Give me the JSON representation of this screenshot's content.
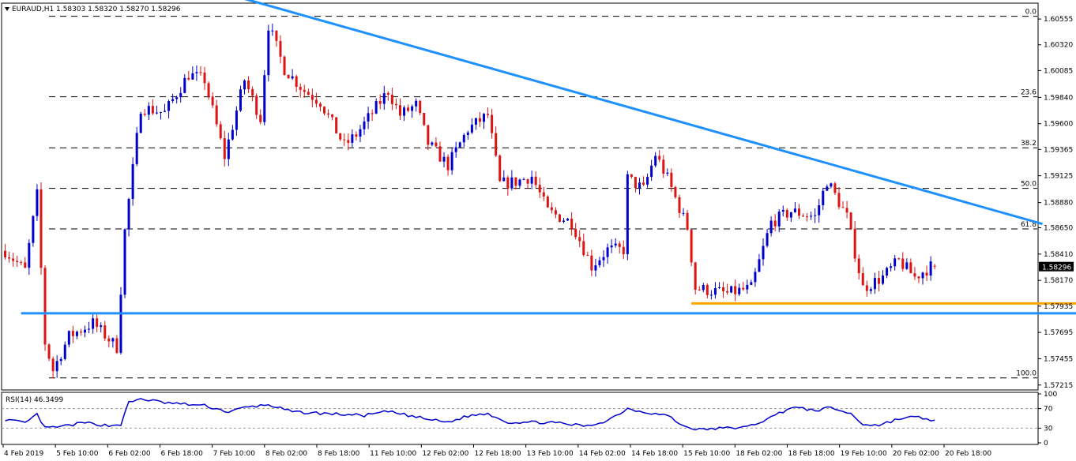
{
  "header": {
    "symbol_line": "EURAUD,H1  1.58303 1.58320 1.58270 1.58296",
    "rsi_label": "RSI(14) 46.3499"
  },
  "colors": {
    "bull": "#0000cd",
    "bear": "#dc1414",
    "trendline": "#1e90ff",
    "support_orange": "#ffa500",
    "rsi_line": "#0000cd"
  },
  "chart_data": [
    {
      "type": "candlestick",
      "title": "EURAUD,H1",
      "ohlc_last": {
        "open": 1.58303,
        "high": 1.5832,
        "low": 1.5827,
        "close": 1.58296
      },
      "current_price_label": "1.58296",
      "y_ticks": [
        "1.60555",
        "1.60320",
        "1.60085",
        "1.59840",
        "1.59600",
        "1.59365",
        "1.59125",
        "1.58880",
        "1.58650",
        "1.58410",
        "1.58170",
        "1.57935",
        "1.57695",
        "1.57455",
        "1.57215"
      ],
      "ylim": [
        1.5717,
        1.607
      ],
      "x_ticks": [
        "4 Feb 2019",
        "5 Feb 10:00",
        "6 Feb 02:00",
        "6 Feb 18:00",
        "7 Feb 10:00",
        "8 Feb 02:00",
        "8 Feb 18:00",
        "11 Feb 10:00",
        "12 Feb 02:00",
        "12 Feb 18:00",
        "13 Feb 10:00",
        "14 Feb 02:00",
        "14 Feb 18:00",
        "15 Feb 10:00",
        "18 Feb 02:00",
        "18 Feb 18:00",
        "19 Feb 10:00",
        "20 Feb 02:00",
        "20 Feb 18:00"
      ],
      "fib_levels": [
        {
          "label": "0.0",
          "price": 1.6058
        },
        {
          "label": "23.6",
          "price": 1.59845
        },
        {
          "label": "38.2",
          "price": 1.5938
        },
        {
          "label": "50.0",
          "price": 1.5901
        },
        {
          "label": "61.8",
          "price": 1.5864
        },
        {
          "label": "100.0",
          "price": 1.5728
        }
      ],
      "lines": [
        {
          "kind": "falling-trendline",
          "from": {
            "bar": 58,
            "price": 1.6076
          },
          "to": {
            "bar": 260,
            "price": 1.58685
          }
        },
        {
          "kind": "support",
          "from": {
            "bar": 4,
            "price": 1.5787
          },
          "to": {
            "bar": 270,
            "price": 1.5787
          }
        },
        {
          "kind": "support-orange",
          "from": {
            "bar": 172,
            "price": 1.5796
          },
          "to": {
            "bar": 270,
            "price": 1.5796
          }
        }
      ],
      "anchors": [
        [
          0,
          1.5844
        ],
        [
          5,
          1.5826
        ],
        [
          8,
          1.5895
        ],
        [
          10,
          1.576
        ],
        [
          12,
          1.5735
        ],
        [
          16,
          1.5766
        ],
        [
          22,
          1.5778
        ],
        [
          28,
          1.5756
        ],
        [
          30,
          1.5862
        ],
        [
          34,
          1.5975
        ],
        [
          40,
          1.597
        ],
        [
          46,
          1.6005
        ],
        [
          50,
          1.6
        ],
        [
          55,
          1.593
        ],
        [
          60,
          1.6
        ],
        [
          64,
          1.5965
        ],
        [
          66,
          1.605
        ],
        [
          70,
          1.601
        ],
        [
          75,
          1.599
        ],
        [
          79,
          1.598
        ],
        [
          85,
          1.594
        ],
        [
          88,
          1.595
        ],
        [
          93,
          1.5975
        ],
        [
          96,
          1.599
        ],
        [
          99,
          1.5968
        ],
        [
          103,
          1.5977
        ],
        [
          106,
          1.5942
        ],
        [
          111,
          1.5922
        ],
        [
          116,
          1.5955
        ],
        [
          121,
          1.5968
        ],
        [
          124,
          1.5905
        ],
        [
          128,
          1.5907
        ],
        [
          132,
          1.5912
        ],
        [
          136,
          1.588
        ],
        [
          142,
          1.587
        ],
        [
          147,
          1.583
        ],
        [
          151,
          1.5845
        ],
        [
          155,
          1.5845
        ],
        [
          156,
          1.591
        ],
        [
          160,
          1.59
        ],
        [
          163,
          1.5932
        ],
        [
          166,
          1.591
        ],
        [
          171,
          1.5865
        ],
        [
          173,
          1.581
        ],
        [
          181,
          1.5805
        ],
        [
          187,
          1.581
        ],
        [
          192,
          1.587
        ],
        [
          197,
          1.588
        ],
        [
          203,
          1.5875
        ],
        [
          206,
          1.5908
        ],
        [
          211,
          1.5875
        ],
        [
          215,
          1.581
        ],
        [
          220,
          1.582
        ],
        [
          224,
          1.5835
        ],
        [
          228,
          1.582
        ],
        [
          233,
          1.5832
        ]
      ],
      "rsi": {
        "label": "RSI(14) 46.3499",
        "value": 46.3499,
        "y_ticks": [
          "100",
          "70",
          "30",
          "0"
        ],
        "levels": [
          70,
          30
        ],
        "ylim": [
          0,
          100
        ],
        "anchors": [
          [
            0,
            48
          ],
          [
            5,
            40
          ],
          [
            8,
            58
          ],
          [
            10,
            30
          ],
          [
            14,
            33
          ],
          [
            20,
            41
          ],
          [
            26,
            35
          ],
          [
            29,
            38
          ],
          [
            31,
            82
          ],
          [
            34,
            90
          ],
          [
            40,
            82
          ],
          [
            50,
            76
          ],
          [
            56,
            63
          ],
          [
            60,
            72
          ],
          [
            66,
            78
          ],
          [
            72,
            63
          ],
          [
            80,
            60
          ],
          [
            90,
            56
          ],
          [
            96,
            64
          ],
          [
            106,
            48
          ],
          [
            111,
            42
          ],
          [
            116,
            55
          ],
          [
            121,
            60
          ],
          [
            126,
            42
          ],
          [
            136,
            42
          ],
          [
            146,
            34
          ],
          [
            151,
            46
          ],
          [
            156,
            70
          ],
          [
            161,
            62
          ],
          [
            166,
            56
          ],
          [
            170,
            34
          ],
          [
            174,
            27
          ],
          [
            180,
            30
          ],
          [
            186,
            32
          ],
          [
            192,
            52
          ],
          [
            197,
            73
          ],
          [
            203,
            66
          ],
          [
            207,
            72
          ],
          [
            212,
            59
          ],
          [
            215,
            38
          ],
          [
            219,
            36
          ],
          [
            224,
            49
          ],
          [
            228,
            53
          ],
          [
            233,
            46
          ]
        ]
      }
    }
  ]
}
